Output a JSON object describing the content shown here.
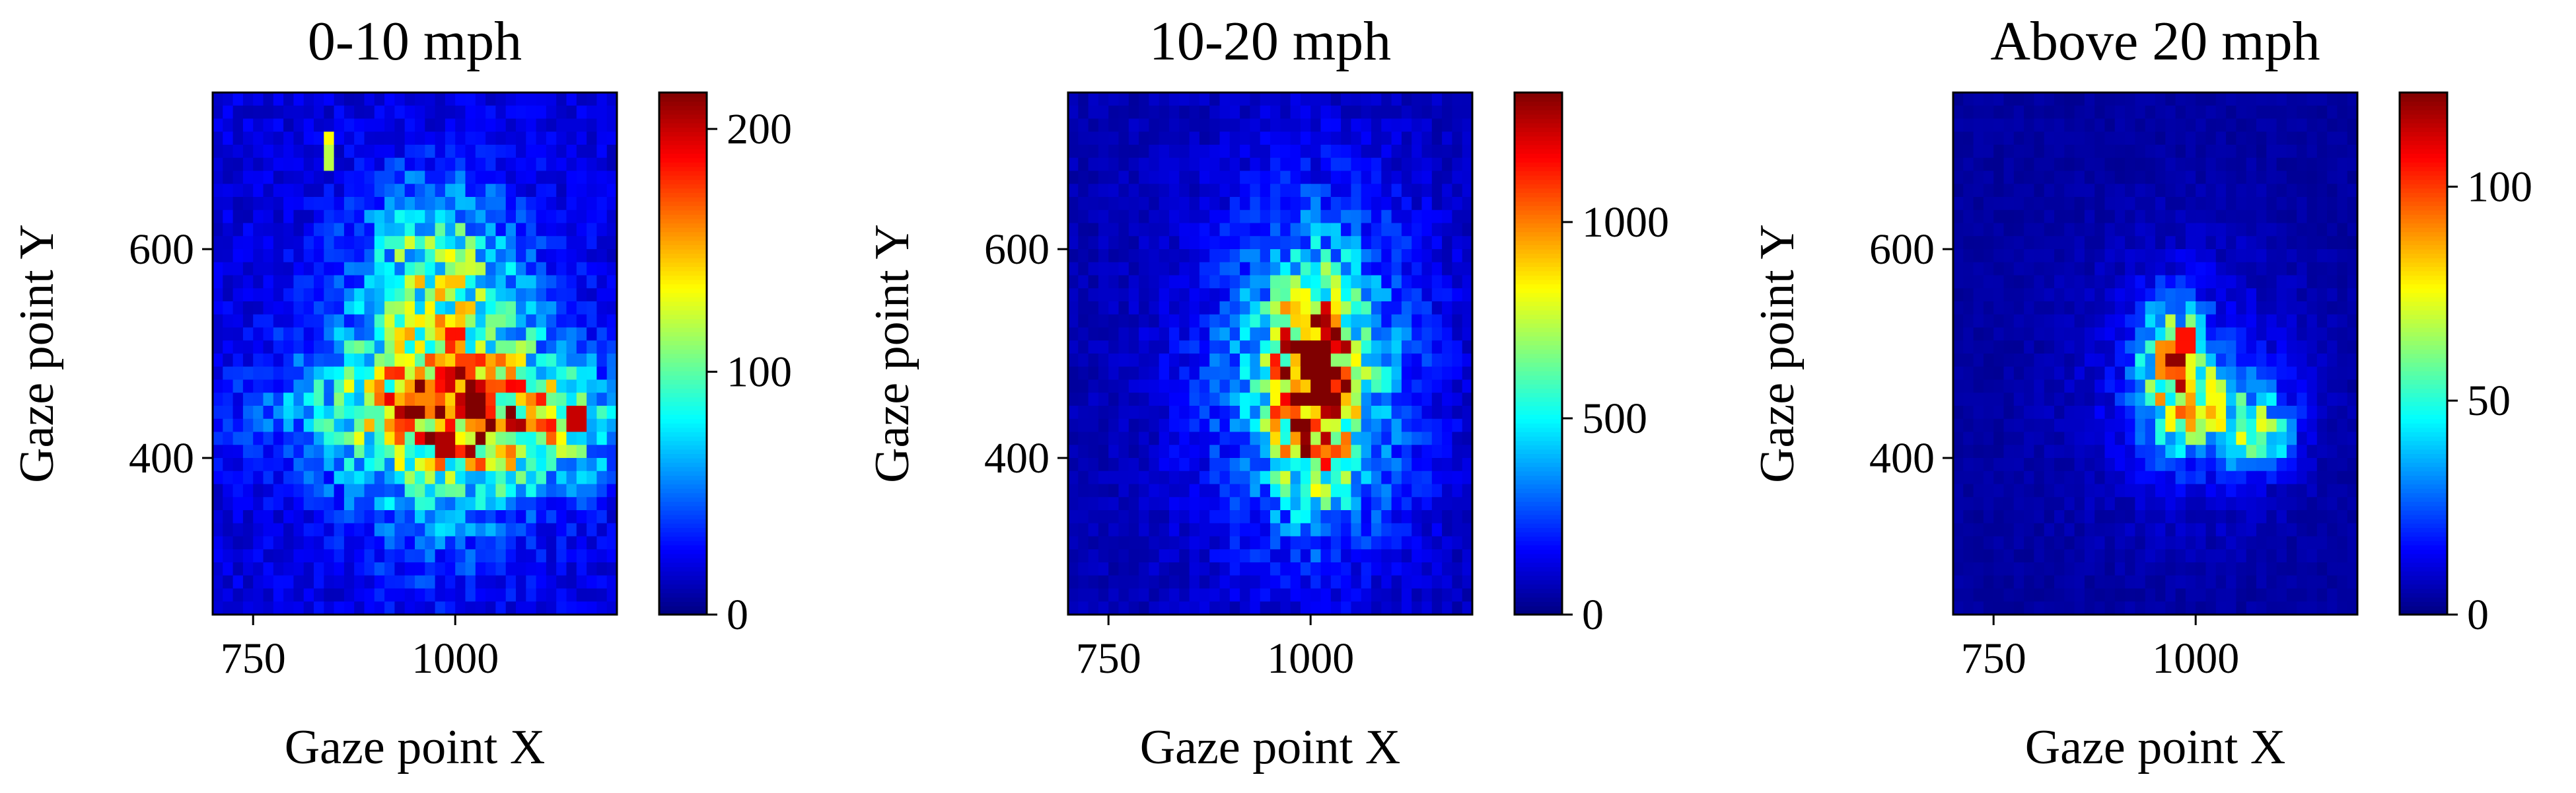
{
  "figure": {
    "background": "#ffffff",
    "colormap": "jet"
  },
  "chart_data": [
    {
      "type": "heatmap",
      "title": "0-10 mph",
      "xlabel": "Gaze point X",
      "ylabel": "Gaze point Y",
      "xlim": [
        700,
        1200
      ],
      "ylim": [
        250,
        750
      ],
      "xticks": [
        750,
        1000
      ],
      "yticks": [
        400,
        600
      ],
      "bins": [
        40,
        40
      ],
      "colorbar": {
        "min": 0,
        "max": 215,
        "ticks": [
          0,
          100,
          200
        ]
      },
      "background_level": 0.09,
      "density_peaks": [
        {
          "x": 985,
          "y": 470,
          "sx": 85,
          "sy": 95,
          "value": 0.45
        },
        {
          "x": 980,
          "y": 445,
          "sx": 150,
          "sy": 40,
          "value": 0.28
        },
        {
          "x": 1110,
          "y": 425,
          "sx": 70,
          "sy": 35,
          "value": 0.22
        },
        {
          "x": 970,
          "y": 600,
          "sx": 55,
          "sy": 45,
          "value": 0.2
        }
      ],
      "hotspots": [
        {
          "x": 1000,
          "y": 520,
          "value": 185
        },
        {
          "x": 1010,
          "y": 490,
          "value": 175
        },
        {
          "x": 990,
          "y": 410,
          "value": 205
        },
        {
          "x": 955,
          "y": 420,
          "value": 170
        },
        {
          "x": 1150,
          "y": 440,
          "value": 200
        },
        {
          "x": 845,
          "y": 705,
          "value": 135
        },
        {
          "x": 845,
          "y": 690,
          "value": 120
        },
        {
          "x": 965,
          "y": 460,
          "value": 160
        }
      ]
    },
    {
      "type": "heatmap",
      "title": "10-20 mph",
      "xlabel": "Gaze point X",
      "ylabel": "Gaze point Y",
      "xlim": [
        700,
        1200
      ],
      "ylim": [
        250,
        750
      ],
      "xticks": [
        750,
        1000
      ],
      "yticks": [
        400,
        600
      ],
      "bins": [
        40,
        40
      ],
      "colorbar": {
        "min": 0,
        "max": 1330,
        "ticks": [
          0,
          500,
          1000
        ]
      },
      "background_level": 0.05,
      "density_peaks": [
        {
          "x": 1005,
          "y": 470,
          "sx": 35,
          "sy": 60,
          "value": 0.8
        },
        {
          "x": 1005,
          "y": 480,
          "sx": 95,
          "sy": 120,
          "value": 0.3
        }
      ],
      "hotspots": [
        {
          "x": 1005,
          "y": 490,
          "value": 1300
        },
        {
          "x": 995,
          "y": 455,
          "value": 1250
        },
        {
          "x": 1010,
          "y": 460,
          "value": 1330
        },
        {
          "x": 995,
          "y": 505,
          "value": 1150
        }
      ]
    },
    {
      "type": "heatmap",
      "title": "Above 20 mph",
      "xlabel": "Gaze point X",
      "ylabel": "Gaze point Y",
      "xlim": [
        700,
        1200
      ],
      "ylim": [
        250,
        750
      ],
      "xticks": [
        750,
        1000
      ],
      "yticks": [
        400,
        600
      ],
      "bins": [
        40,
        40
      ],
      "colorbar": {
        "min": 0,
        "max": 122,
        "ticks": [
          0,
          50,
          100
        ]
      },
      "background_level": 0.03,
      "density_peaks": [
        {
          "x": 975,
          "y": 490,
          "sx": 28,
          "sy": 38,
          "value": 0.55
        },
        {
          "x": 1030,
          "y": 440,
          "sx": 55,
          "sy": 30,
          "value": 0.32
        },
        {
          "x": 1085,
          "y": 420,
          "sx": 22,
          "sy": 18,
          "value": 0.25
        },
        {
          "x": 990,
          "y": 470,
          "sx": 95,
          "sy": 90,
          "value": 0.1
        }
      ],
      "hotspots": [
        {
          "x": 975,
          "y": 495,
          "value": 120
        },
        {
          "x": 985,
          "y": 510,
          "value": 105
        },
        {
          "x": 965,
          "y": 480,
          "value": 90
        },
        {
          "x": 1030,
          "y": 450,
          "value": 75
        }
      ]
    }
  ]
}
